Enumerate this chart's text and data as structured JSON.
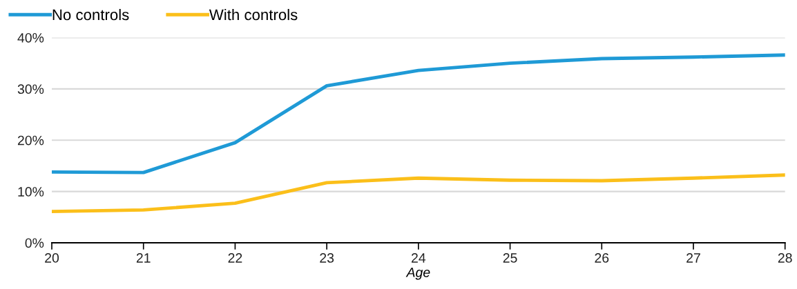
{
  "chart_data": {
    "type": "line",
    "xlabel": "Age",
    "x": [
      20,
      21,
      22,
      23,
      24,
      25,
      26,
      27,
      28
    ],
    "series": [
      {
        "name": "No controls",
        "color": "#1f9ad6",
        "values": [
          13.8,
          13.7,
          19.5,
          30.6,
          33.6,
          35.0,
          35.9,
          36.2,
          36.6
        ]
      },
      {
        "name": "With controls",
        "color": "#fbbf1a",
        "values": [
          6.1,
          6.4,
          7.7,
          11.7,
          12.6,
          12.2,
          12.1,
          12.6,
          13.2
        ]
      }
    ],
    "xlim": [
      20,
      28
    ],
    "xticks": [
      20,
      21,
      22,
      23,
      24,
      25,
      26,
      27,
      28
    ],
    "ylim": [
      0,
      40
    ],
    "yticks": [
      {
        "value": 0,
        "label": "0%"
      },
      {
        "value": 10,
        "label": "10%"
      },
      {
        "value": 20,
        "label": "20%"
      },
      {
        "value": 30,
        "label": "30%"
      },
      {
        "value": 40,
        "label": "40%"
      }
    ],
    "grid": "y",
    "legend": "top left",
    "line_style": "solid",
    "marker": "none"
  }
}
